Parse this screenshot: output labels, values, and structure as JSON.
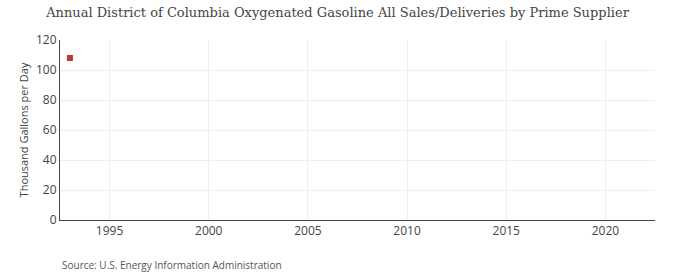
{
  "chart_data": {
    "type": "scatter",
    "title": "Annual District of Columbia Oxygenated Gasoline All Sales/Deliveries by Prime Supplier",
    "ylabel": "Thousand Gallons per Day",
    "source": "Source: U.S. Energy Information Administration",
    "x": [
      1993
    ],
    "values": [
      108
    ],
    "color": "#c0392b",
    "marker": "square",
    "xlim": [
      1992.5,
      2022.5
    ],
    "xticks": [
      1995,
      2000,
      2005,
      2010,
      2015,
      2020
    ],
    "ylim": [
      0,
      120
    ],
    "yticks": [
      0,
      20,
      40,
      60,
      80,
      100,
      120
    ],
    "grid": true
  }
}
